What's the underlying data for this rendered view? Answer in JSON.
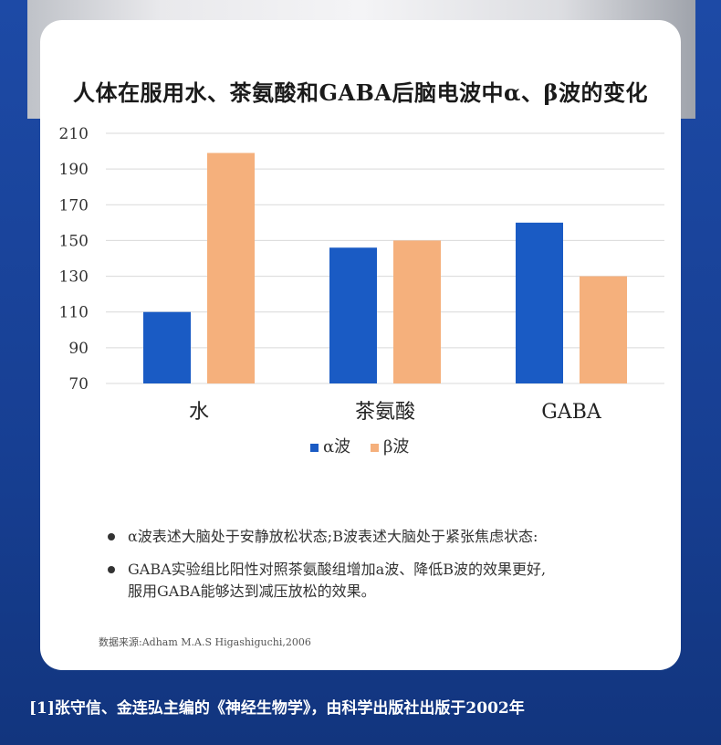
{
  "chart_data": {
    "type": "bar",
    "title": "人体在服用水、茶氨酸和GABA后脑电波中α、β波的变化",
    "categories": [
      "水",
      "茶氨酸",
      "GABA"
    ],
    "series": [
      {
        "name": "α波",
        "values": [
          110,
          146,
          160
        ],
        "color": "#1a5bc4"
      },
      {
        "name": "β波",
        "values": [
          199,
          150,
          130
        ],
        "color": "#f5b07c"
      }
    ],
    "yticks": [
      70,
      90,
      110,
      130,
      150,
      170,
      190,
      210
    ],
    "ylim": [
      70,
      210
    ],
    "grid": true,
    "legend_position": "bottom-center"
  },
  "notes": [
    "α波表述大脑处于安静放松状态;B波表述大脑处于紧张焦虑状态:",
    "GABA实验组比阳性对照茶氨酸组增加a波、降低B波的效果更好,",
    "服用GABA能够达到减压放松的效果。"
  ],
  "source": "数据来源:Adham M.A.S Higashiguchi,2006",
  "footnote": "[1]张守信、金连弘主编的《神经生物学》，由科学出版社出版于2002年"
}
